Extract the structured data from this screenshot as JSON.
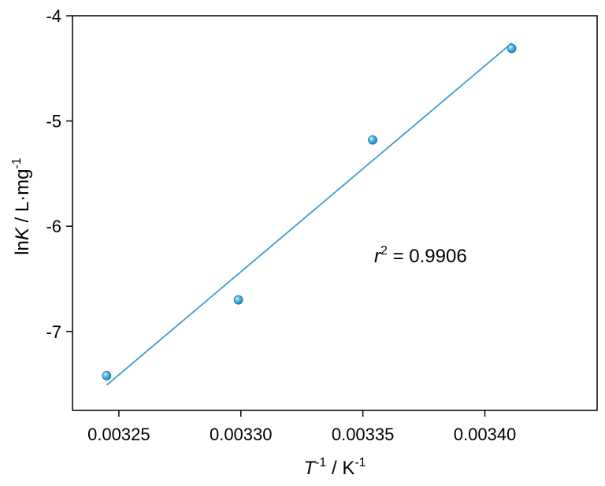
{
  "chart_data": {
    "type": "scatter",
    "title": "",
    "x": [
      0.003245,
      0.003299,
      0.003354,
      0.003411
    ],
    "y": [
      -7.42,
      -6.7,
      -5.18,
      -4.31
    ],
    "fit_line": {
      "x": [
        0.003245,
        0.003411
      ],
      "y": [
        -7.51,
        -4.26
      ]
    },
    "xlim": [
      0.003231,
      0.003446
    ],
    "ylim": [
      -7.75,
      -4.0
    ],
    "x_ticks": [
      0.00325,
      0.0033,
      0.00335,
      0.0034
    ],
    "x_tick_labels": [
      "0.00325",
      "0.00330",
      "0.00335",
      "0.00340"
    ],
    "y_ticks": [
      -4,
      -5,
      -6,
      -7
    ],
    "y_tick_labels": [
      "-4",
      "-5",
      "-6",
      "-7"
    ],
    "xlabel": {
      "symbol": "T",
      "exponent": "-1",
      "unit": " / K",
      "unit_exponent": "-1"
    },
    "ylabel": {
      "prefix": "ln",
      "symbol": "K",
      "unit": " / L·mg",
      "unit_exponent": "-1"
    },
    "annotation": {
      "symbol": "r",
      "exponent": "2",
      "text": " = 0.9906"
    },
    "grid": false,
    "legend": "none",
    "colors": {
      "marker": "#2a9fd6",
      "marker_edge": "#1a6f9c",
      "line": "#3a9fd0",
      "axis": "#000000"
    }
  }
}
